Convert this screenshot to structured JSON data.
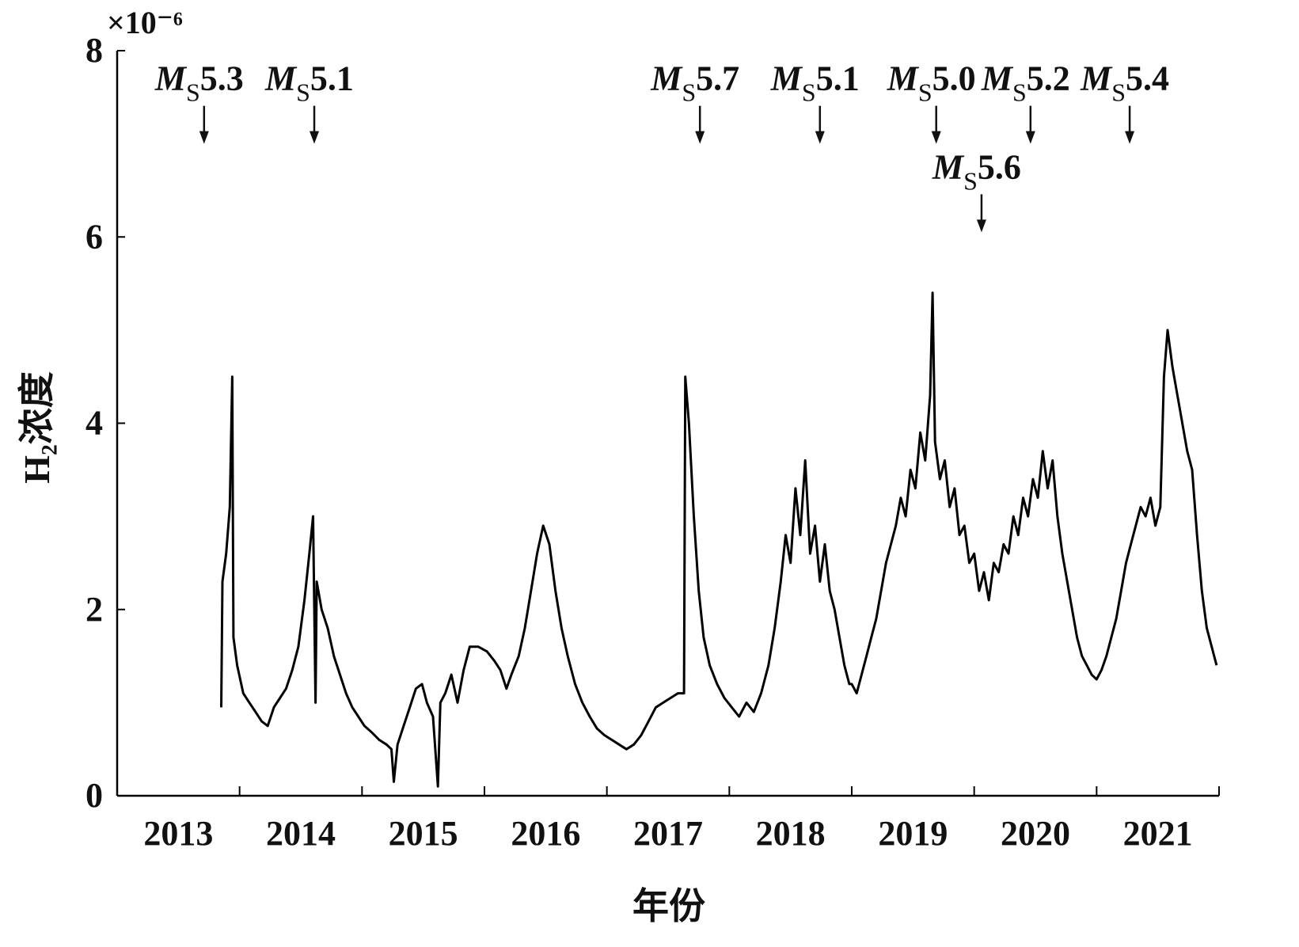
{
  "chart_data": {
    "type": "line",
    "y_multiplier": "×10⁻⁶",
    "ylabel": "H₂浓度",
    "xlabel": "年份",
    "color": "#000000",
    "xlim": [
      2013,
      2022
    ],
    "xticks": [
      {
        "value": 2013.5,
        "label": "2013"
      },
      {
        "value": 2014.5,
        "label": "2014"
      },
      {
        "value": 2015.5,
        "label": "2015"
      },
      {
        "value": 2016.5,
        "label": "2016"
      },
      {
        "value": 2017.5,
        "label": "2017"
      },
      {
        "value": 2018.5,
        "label": "2018"
      },
      {
        "value": 2019.5,
        "label": "2019"
      },
      {
        "value": 2020.5,
        "label": "2020"
      },
      {
        "value": 2021.5,
        "label": "2021"
      }
    ],
    "x_tick_marks": [
      2014,
      2015,
      2016,
      2017,
      2018,
      2019,
      2020,
      2021,
      2022
    ],
    "ylim": [
      0,
      8
    ],
    "yticks": [
      0,
      2,
      4,
      6,
      8
    ],
    "annotation_symbol": "M",
    "annotation_subscript": "S",
    "annotations": [
      {
        "magnitude": "5.3",
        "x": 2013.71,
        "y": 7.0
      },
      {
        "magnitude": "5.1",
        "x": 2014.61,
        "y": 7.0
      },
      {
        "magnitude": "5.7",
        "x": 2017.76,
        "y": 7.0
      },
      {
        "magnitude": "5.1",
        "x": 2018.74,
        "y": 7.0
      },
      {
        "magnitude": "5.0",
        "x": 2019.69,
        "y": 7.0
      },
      {
        "magnitude": "5.2",
        "x": 2020.46,
        "y": 7.0
      },
      {
        "magnitude": "5.4",
        "x": 2021.27,
        "y": 7.0
      },
      {
        "magnitude": "5.6",
        "x": 2020.06,
        "y": 6.05
      }
    ],
    "x": [
      2013.85,
      2013.86,
      2013.89,
      2013.92,
      2013.94,
      2013.95,
      2013.98,
      2014.03,
      2014.08,
      2014.13,
      2014.18,
      2014.23,
      2014.28,
      2014.33,
      2014.38,
      2014.43,
      2014.48,
      2014.53,
      2014.57,
      2014.6,
      2014.62,
      2014.63,
      2014.67,
      2014.72,
      2014.77,
      2014.82,
      2014.87,
      2014.92,
      2014.97,
      2015.02,
      2015.08,
      2015.14,
      2015.2,
      2015.24,
      2015.26,
      2015.29,
      2015.34,
      2015.39,
      2015.44,
      2015.49,
      2015.53,
      2015.58,
      2015.62,
      2015.64,
      2015.68,
      2015.73,
      2015.78,
      2015.83,
      2015.88,
      2015.95,
      2016.02,
      2016.08,
      2016.13,
      2016.18,
      2016.22,
      2016.28,
      2016.33,
      2016.38,
      2016.43,
      2016.48,
      2016.53,
      2016.58,
      2016.63,
      2016.68,
      2016.74,
      2016.8,
      2016.86,
      2016.92,
      2016.98,
      2017.04,
      2017.1,
      2017.16,
      2017.22,
      2017.28,
      2017.34,
      2017.4,
      2017.46,
      2017.52,
      2017.58,
      2017.63,
      2017.64,
      2017.67,
      2017.71,
      2017.75,
      2017.79,
      2017.84,
      2017.9,
      2017.96,
      2018.02,
      2018.08,
      2018.14,
      2018.2,
      2018.26,
      2018.32,
      2018.37,
      2018.42,
      2018.46,
      2018.5,
      2018.54,
      2018.58,
      2018.62,
      2018.66,
      2018.7,
      2018.74,
      2018.78,
      2018.82,
      2018.86,
      2018.9,
      2018.94,
      2018.98,
      2019.0,
      2019.04,
      2019.08,
      2019.12,
      2019.16,
      2019.2,
      2019.24,
      2019.28,
      2019.32,
      2019.36,
      2019.4,
      2019.44,
      2019.48,
      2019.52,
      2019.56,
      2019.6,
      2019.64,
      2019.66,
      2019.68,
      2019.72,
      2019.76,
      2019.8,
      2019.84,
      2019.88,
      2019.92,
      2019.96,
      2020.0,
      2020.04,
      2020.08,
      2020.12,
      2020.16,
      2020.2,
      2020.24,
      2020.28,
      2020.32,
      2020.36,
      2020.4,
      2020.44,
      2020.48,
      2020.52,
      2020.56,
      2020.6,
      2020.64,
      2020.68,
      2020.72,
      2020.76,
      2020.8,
      2020.84,
      2020.88,
      2020.92,
      2020.96,
      2021.0,
      2021.04,
      2021.08,
      2021.12,
      2021.16,
      2021.2,
      2021.24,
      2021.28,
      2021.32,
      2021.36,
      2021.4,
      2021.44,
      2021.48,
      2021.52,
      2021.55,
      2021.58,
      2021.62,
      2021.66,
      2021.7,
      2021.74,
      2021.78,
      2021.82,
      2021.86,
      2021.9,
      2021.94,
      2021.98
    ],
    "values": [
      0.95,
      2.3,
      2.6,
      3.1,
      4.5,
      1.7,
      1.4,
      1.1,
      1.0,
      0.9,
      0.8,
      0.75,
      0.95,
      1.05,
      1.15,
      1.35,
      1.6,
      2.1,
      2.6,
      3.0,
      1.0,
      2.3,
      2.0,
      1.8,
      1.5,
      1.3,
      1.1,
      0.95,
      0.85,
      0.75,
      0.68,
      0.6,
      0.55,
      0.5,
      0.15,
      0.55,
      0.75,
      0.95,
      1.15,
      1.2,
      1.0,
      0.85,
      0.1,
      1.0,
      1.1,
      1.3,
      1.0,
      1.35,
      1.6,
      1.6,
      1.55,
      1.45,
      1.35,
      1.15,
      1.3,
      1.5,
      1.8,
      2.2,
      2.6,
      2.9,
      2.7,
      2.2,
      1.8,
      1.5,
      1.2,
      1.0,
      0.85,
      0.72,
      0.65,
      0.6,
      0.55,
      0.5,
      0.55,
      0.65,
      0.8,
      0.95,
      1.0,
      1.05,
      1.1,
      1.1,
      4.5,
      4.0,
      3.0,
      2.2,
      1.7,
      1.4,
      1.2,
      1.05,
      0.95,
      0.85,
      1.0,
      0.9,
      1.1,
      1.4,
      1.8,
      2.3,
      2.8,
      2.5,
      3.3,
      2.8,
      3.6,
      2.6,
      2.9,
      2.3,
      2.7,
      2.2,
      2.0,
      1.7,
      1.4,
      1.2,
      1.2,
      1.1,
      1.3,
      1.5,
      1.7,
      1.9,
      2.2,
      2.5,
      2.7,
      2.9,
      3.2,
      3.0,
      3.5,
      3.3,
      3.9,
      3.6,
      4.3,
      5.4,
      3.8,
      3.4,
      3.6,
      3.1,
      3.3,
      2.8,
      2.9,
      2.5,
      2.6,
      2.2,
      2.4,
      2.1,
      2.5,
      2.4,
      2.7,
      2.6,
      3.0,
      2.8,
      3.2,
      3.0,
      3.4,
      3.2,
      3.7,
      3.3,
      3.6,
      3.0,
      2.6,
      2.3,
      2.0,
      1.7,
      1.5,
      1.4,
      1.3,
      1.25,
      1.35,
      1.5,
      1.7,
      1.9,
      2.2,
      2.5,
      2.7,
      2.9,
      3.1,
      3.0,
      3.2,
      2.9,
      3.1,
      4.5,
      5.0,
      4.6,
      4.3,
      4.0,
      3.7,
      3.5,
      2.8,
      2.2,
      1.8,
      1.6,
      1.4
    ]
  }
}
